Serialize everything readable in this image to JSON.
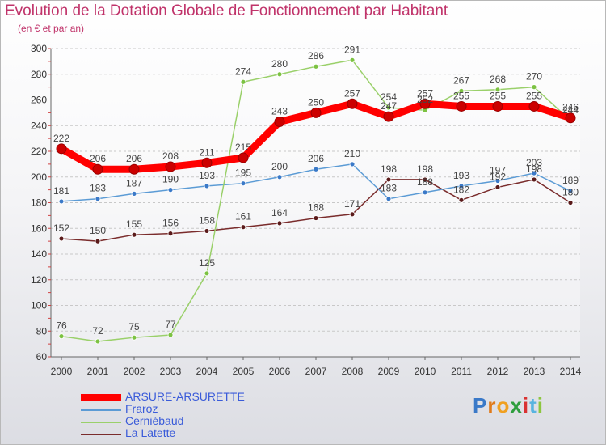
{
  "header": {
    "title": "Evolution de la Dotation Globale de Fonctionnement par Habitant",
    "subtitle": "(en € et par an)"
  },
  "brand": {
    "logo_text": "Proxiti"
  },
  "chart_data": {
    "type": "line",
    "title": "Evolution de la Dotation Globale de Fonctionnement par Habitant",
    "subtitle": "(en € et par an)",
    "xlabel": "",
    "ylabel": "",
    "ylim": [
      60,
      300
    ],
    "yticks": [
      60,
      80,
      100,
      120,
      140,
      160,
      180,
      200,
      220,
      240,
      260,
      280,
      300
    ],
    "grid": "horizontal dashed",
    "legend_position": "bottom-left",
    "categories": [
      "2000",
      "2001",
      "2002",
      "2003",
      "2004",
      "2005",
      "2006",
      "2007",
      "2008",
      "2009",
      "2010",
      "2011",
      "2012",
      "2013",
      "2014"
    ],
    "series": [
      {
        "name": "La Latette",
        "color": "#7a2c2c",
        "marker_color": "#5a1a1a",
        "values": [
          152,
          150,
          155,
          156,
          158,
          161,
          164,
          168,
          171,
          198,
          198,
          182,
          192,
          198,
          180
        ]
      },
      {
        "name": "Fraroz",
        "color": "#5b9bd5",
        "marker_color": "#3a79c8",
        "values": [
          181,
          183,
          187,
          190,
          193,
          195,
          200,
          206,
          210,
          183,
          188,
          193,
          197,
          203,
          189
        ]
      },
      {
        "name": "Cerniébaud",
        "color": "#9ad06a",
        "marker_color": "#7cc242",
        "values": [
          76,
          72,
          75,
          77,
          125,
          274,
          280,
          286,
          291,
          254,
          252,
          267,
          268,
          270,
          244
        ]
      },
      {
        "name": "ARSURE-ARSURETTE",
        "color": "#ff0000",
        "marker_color": "#cc0000",
        "values": [
          222,
          206,
          206,
          208,
          211,
          215,
          243,
          250,
          257,
          247,
          257,
          255,
          255,
          255,
          246
        ]
      }
    ]
  },
  "legend": [
    {
      "name": "ARSURE-ARSURETTE",
      "color": "#ff0000",
      "text_color": "#3a5bd9"
    },
    {
      "name": "Fraroz",
      "color": "#5b9bd5",
      "text_color": "#3a5bd9"
    },
    {
      "name": "Cerniébaud",
      "color": "#9ad06a",
      "text_color": "#3a5bd9"
    },
    {
      "name": "La Latette",
      "color": "#7a2c2c",
      "text_color": "#3a5bd9"
    }
  ]
}
